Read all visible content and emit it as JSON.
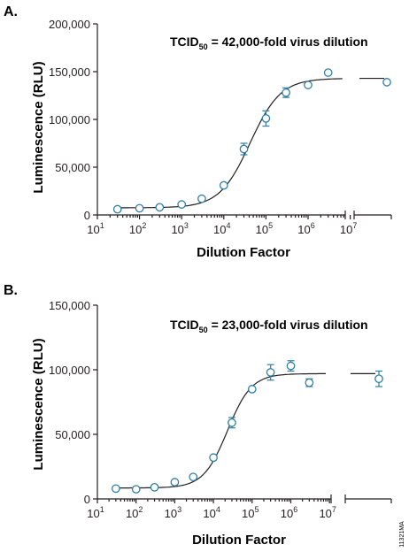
{
  "figure_id": "11321MA",
  "colors": {
    "axis": "#231f20",
    "marker": "#2f7fa6",
    "curve": "#231f20"
  },
  "chart_data": [
    {
      "type": "scatter",
      "panel_label": "A.",
      "title": "",
      "xlabel": "Dilution Factor",
      "ylabel": "Luminescence (RLU)",
      "x_scale": "log",
      "x_ticks": [
        {
          "base": "10",
          "exp": "1"
        },
        {
          "base": "10",
          "exp": "2"
        },
        {
          "base": "10",
          "exp": "3"
        },
        {
          "base": "10",
          "exp": "4"
        },
        {
          "base": "10",
          "exp": "5"
        },
        {
          "base": "10",
          "exp": "6"
        },
        {
          "base": "10",
          "exp": "7"
        }
      ],
      "y_ticks": [
        "0",
        "50,000",
        "100,000",
        "150,000",
        "200,000"
      ],
      "ylim": [
        0,
        200000
      ],
      "annotation": {
        "pre": "TCID",
        "sub": "50",
        "post": " = 42,000-fold virus dilution"
      },
      "points": [
        {
          "x": 30,
          "y": 6000,
          "err": 0
        },
        {
          "x": 100,
          "y": 7000,
          "err": 0
        },
        {
          "x": 300,
          "y": 8000,
          "err": 0
        },
        {
          "x": 1000,
          "y": 11000,
          "err": 0
        },
        {
          "x": 3000,
          "y": 17000,
          "err": 0
        },
        {
          "x": 10000,
          "y": 31000,
          "err": 0
        },
        {
          "x": 30000,
          "y": 69000,
          "err": 6000
        },
        {
          "x": 100000,
          "y": 101000,
          "err": 8000
        },
        {
          "x": 300000,
          "y": 128000,
          "err": 5000
        },
        {
          "x": 1000000,
          "y": 136000,
          "err": 0
        },
        {
          "x": 3000000,
          "y": 149000,
          "err": 0
        }
      ],
      "break_points": [
        {
          "y": 139000,
          "err": 0
        }
      ],
      "fit": {
        "bottom": 7500,
        "top": 143000,
        "ec50": 42000,
        "hill": 1.2
      }
    },
    {
      "type": "scatter",
      "panel_label": "B.",
      "title": "",
      "xlabel": "Dilution Factor",
      "ylabel": "Luminescence (RLU)",
      "x_scale": "log",
      "x_ticks": [
        {
          "base": "10",
          "exp": "1"
        },
        {
          "base": "10",
          "exp": "2"
        },
        {
          "base": "10",
          "exp": "3"
        },
        {
          "base": "10",
          "exp": "4"
        },
        {
          "base": "10",
          "exp": "5"
        },
        {
          "base": "10",
          "exp": "6"
        },
        {
          "base": "10",
          "exp": "7"
        }
      ],
      "y_ticks": [
        "0",
        "50,000",
        "100,000",
        "150,000"
      ],
      "ylim": [
        0,
        150000
      ],
      "annotation": {
        "pre": "TCID",
        "sub": "50",
        "post": " = 23,000-fold virus dilution"
      },
      "points": [
        {
          "x": 30,
          "y": 8000,
          "err": 0
        },
        {
          "x": 100,
          "y": 7500,
          "err": 0
        },
        {
          "x": 300,
          "y": 9000,
          "err": 0
        },
        {
          "x": 1000,
          "y": 13000,
          "err": 0
        },
        {
          "x": 3000,
          "y": 17000,
          "err": 0
        },
        {
          "x": 10000,
          "y": 32000,
          "err": 0
        },
        {
          "x": 30000,
          "y": 59000,
          "err": 4000
        },
        {
          "x": 100000,
          "y": 85000,
          "err": 0
        },
        {
          "x": 300000,
          "y": 98000,
          "err": 6000
        },
        {
          "x": 1000000,
          "y": 103000,
          "err": 4000
        },
        {
          "x": 3000000,
          "y": 90000,
          "err": 3000
        }
      ],
      "break_points": [
        {
          "y": 93000,
          "err": 6000
        }
      ],
      "fit": {
        "bottom": 8500,
        "top": 97000,
        "ec50": 23000,
        "hill": 1.4
      }
    }
  ]
}
